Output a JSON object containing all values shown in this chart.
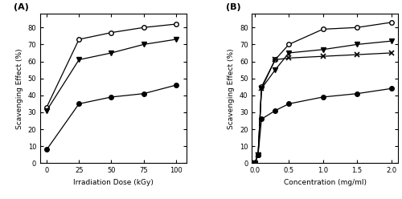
{
  "panel_A": {
    "title": "(A)",
    "xlabel": "Irradiation Dose (kGy)",
    "ylabel": "Scavenging Effect (%)",
    "ylim": [
      0,
      88
    ],
    "xlim": [
      -5,
      108
    ],
    "yticks": [
      0,
      10,
      20,
      30,
      40,
      50,
      60,
      70,
      80
    ],
    "xticks": [
      0,
      25,
      50,
      75,
      100
    ],
    "CS": {
      "x": [
        0,
        25,
        50,
        75,
        100
      ],
      "y": [
        8,
        35,
        39,
        41,
        46
      ]
    },
    "NMCS": {
      "x": [
        0,
        25,
        50,
        75,
        100
      ],
      "y": [
        33,
        73,
        77,
        80,
        82
      ]
    },
    "NPhCS": {
      "x": [
        0,
        25,
        50,
        75,
        100
      ],
      "y": [
        31,
        61,
        65,
        70,
        73
      ]
    }
  },
  "panel_B": {
    "title": "(B)",
    "xlabel": "Concentration (mg/ml)",
    "ylabel": "Scavenging Effect (%)",
    "ylim": [
      0,
      88
    ],
    "xlim": [
      -0.04,
      2.1
    ],
    "yticks": [
      0,
      10,
      20,
      30,
      40,
      50,
      60,
      70,
      80
    ],
    "xticks": [
      0.0,
      0.5,
      1.0,
      1.5,
      2.0
    ],
    "CS": {
      "x": [
        0,
        0.05,
        0.1,
        0.3,
        0.5,
        1.0,
        1.5,
        2.0
      ],
      "y": [
        0,
        5,
        26,
        31,
        35,
        39,
        41,
        44
      ]
    },
    "NMCS": {
      "x": [
        0,
        0.05,
        0.1,
        0.3,
        0.5,
        1.0,
        1.5,
        2.0
      ],
      "y": [
        0,
        5,
        45,
        61,
        70,
        79,
        80,
        83
      ]
    },
    "NPhCS": {
      "x": [
        0,
        0.05,
        0.1,
        0.3,
        0.5,
        1.0,
        1.5,
        2.0
      ],
      "y": [
        0,
        5,
        44,
        55,
        65,
        67,
        70,
        72
      ]
    },
    "Ascorbic": {
      "x": [
        0,
        0.05,
        0.1,
        0.3,
        0.5,
        1.0,
        1.5,
        2.0
      ],
      "y": [
        0,
        5,
        44,
        61,
        62,
        63,
        64,
        65
      ]
    }
  },
  "font_sizes": {
    "tick": 6,
    "label": 6.5,
    "title": 8
  },
  "marker_size": 4,
  "line_width": 0.9
}
